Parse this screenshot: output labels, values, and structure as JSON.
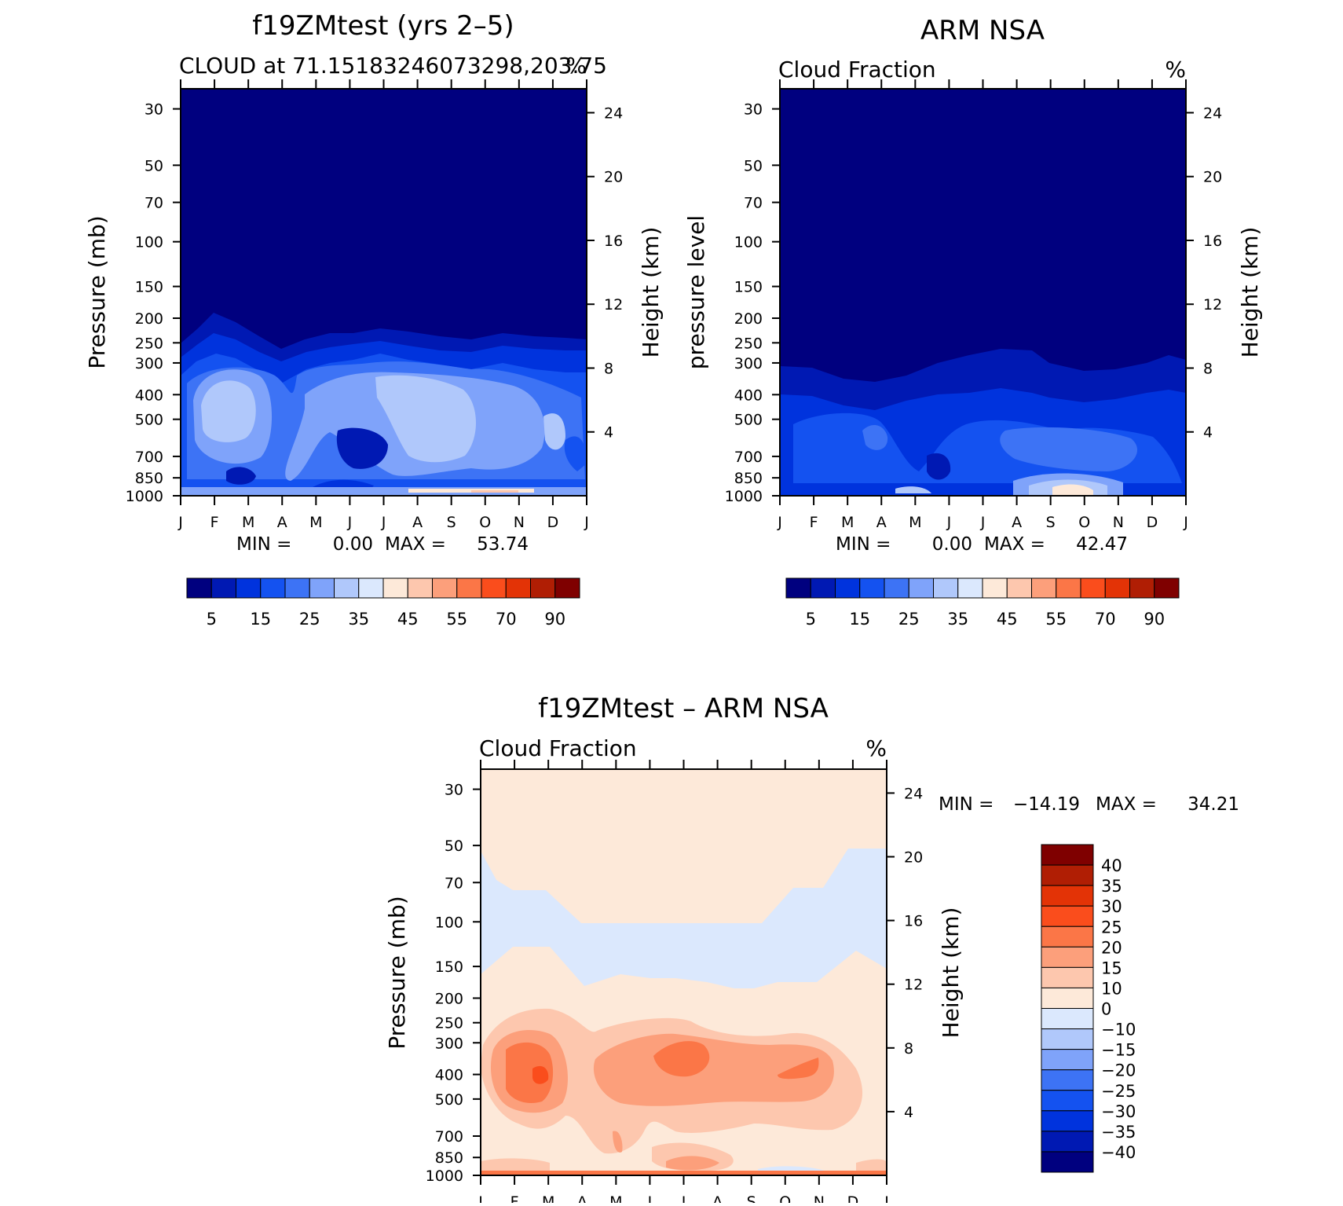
{
  "chart_data": [
    {
      "type": "contour",
      "title": "f19ZMtest (yrs 2–5)",
      "subtitle_left": "CLOUD at 71.15183246073298,203.75",
      "subtitle_right": "%",
      "ylabel_left": "Pressure (mb)",
      "ylabel_right": "Height (km)",
      "x_ticks": [
        "J",
        "F",
        "M",
        "A",
        "M",
        "J",
        "J",
        "A",
        "S",
        "O",
        "N",
        "D",
        "J"
      ],
      "pressure_ticks": [
        30,
        50,
        70,
        100,
        150,
        200,
        250,
        300,
        400,
        500,
        700,
        850,
        1000
      ],
      "height_ticks": [
        24,
        20,
        16,
        12,
        8,
        4
      ],
      "stats": {
        "min_label": "MIN =",
        "min": "0.00",
        "max_label": "MAX =",
        "max": "53.74"
      },
      "colorbar": {
        "orientation": "horizontal",
        "labels": [
          "5",
          "15",
          "25",
          "35",
          "45",
          "55",
          "70",
          "90"
        ],
        "colors": [
          "#00007f",
          "#0019b3",
          "#0033dd",
          "#1452f0",
          "#3d73f5",
          "#7fa3fa",
          "#b0c8fb",
          "#dbe8fd",
          "#fde9d9",
          "#fdc7ae",
          "#fc9f7b",
          "#fb7647",
          "#fa4d1c",
          "#e33306",
          "#b01e04",
          "#7f0000"
        ]
      },
      "field": {
        "months": [
          "J",
          "F",
          "M",
          "A",
          "M",
          "J",
          "J",
          "A",
          "S",
          "O",
          "N",
          "D",
          "J"
        ],
        "levels_mb": [
          1000,
          850,
          700,
          500,
          400,
          300,
          250,
          200,
          150
        ],
        "cloud_top_mb": [
          250,
          200,
          235,
          280,
          245,
          240,
          228,
          238,
          250,
          262,
          248,
          242,
          250
        ],
        "mid_cloud_peak_pct": [
          28,
          37,
          36,
          18,
          30,
          22,
          38,
          36,
          32,
          33,
          30,
          28,
          26
        ]
      }
    },
    {
      "type": "contour",
      "title": "ARM NSA",
      "subtitle_left": "Cloud Fraction",
      "subtitle_right": "%",
      "ylabel_left": "pressure level",
      "ylabel_right": "Height (km)",
      "x_ticks": [
        "J",
        "F",
        "M",
        "A",
        "M",
        "J",
        "J",
        "A",
        "S",
        "O",
        "N",
        "D",
        "J"
      ],
      "pressure_ticks": [
        30,
        50,
        70,
        100,
        150,
        200,
        250,
        300,
        400,
        500,
        700,
        850,
        1000
      ],
      "height_ticks": [
        24,
        20,
        16,
        12,
        8,
        4
      ],
      "stats": {
        "min_label": "MIN =",
        "min": "0.00",
        "max_label": "MAX =",
        "max": "42.47"
      },
      "colorbar": {
        "orientation": "horizontal",
        "labels": [
          "5",
          "15",
          "25",
          "35",
          "45",
          "55",
          "70",
          "90"
        ],
        "colors": [
          "#00007f",
          "#0019b3",
          "#0033dd",
          "#1452f0",
          "#3d73f5",
          "#7fa3fa",
          "#b0c8fb",
          "#dbe8fd",
          "#fde9d9",
          "#fdc7ae",
          "#fc9f7b",
          "#fb7647",
          "#fa4d1c",
          "#e33306",
          "#b01e04",
          "#7f0000"
        ]
      },
      "field": {
        "months": [
          "J",
          "F",
          "M",
          "A",
          "M",
          "J",
          "J",
          "A",
          "S",
          "O",
          "N",
          "D",
          "J"
        ],
        "cloud_top_mb": [
          300,
          310,
          350,
          330,
          320,
          300,
          275,
          265,
          290,
          300,
          295,
          275,
          290
        ],
        "mid_cloud_peak_pct": [
          18,
          22,
          26,
          22,
          20,
          12,
          22,
          25,
          24,
          24,
          22,
          20,
          18
        ]
      }
    },
    {
      "type": "contour",
      "title": "f19ZMtest – ARM NSA",
      "subtitle_left": "Cloud Fraction",
      "subtitle_right": "%",
      "ylabel_left": "Pressure (mb)",
      "ylabel_right": "Height (km)",
      "x_ticks": [
        "J",
        "F",
        "M",
        "A",
        "M",
        "J",
        "J",
        "A",
        "S",
        "O",
        "N",
        "D",
        "J"
      ],
      "pressure_ticks": [
        30,
        50,
        70,
        100,
        150,
        200,
        250,
        300,
        400,
        500,
        700,
        850,
        1000
      ],
      "height_ticks": [
        24,
        20,
        16,
        12,
        8,
        4
      ],
      "stats": {
        "min_label": "MIN =",
        "min": "−14.19",
        "max_label": "MAX =",
        "max": "34.21"
      },
      "colorbar": {
        "orientation": "vertical",
        "labels": [
          "40",
          "35",
          "30",
          "25",
          "20",
          "15",
          "10",
          "0",
          "−10",
          "−15",
          "−20",
          "−25",
          "−30",
          "−35",
          "−40"
        ],
        "colors": [
          "#7f0000",
          "#b01e04",
          "#e33306",
          "#fa4d1c",
          "#fb7647",
          "#fc9f7b",
          "#fdc7ae",
          "#fde9d9",
          "#dbe8fd",
          "#b0c8fb",
          "#7fa3fa",
          "#3d73f5",
          "#1452f0",
          "#0033dd",
          "#0019b3",
          "#00007f"
        ]
      },
      "field": {
        "months": [
          "J",
          "F",
          "M",
          "A",
          "M",
          "J",
          "J",
          "A",
          "S",
          "O",
          "N",
          "D",
          "J"
        ],
        "upper_negative_band_mb": [
          [
            50,
            150
          ],
          [
            70,
            150
          ],
          [
            70,
            150
          ],
          [
            100,
            180
          ],
          [
            100,
            160
          ],
          [
            100,
            150
          ],
          [
            100,
            150
          ],
          [
            100,
            150
          ],
          [
            100,
            175
          ],
          [
            100,
            170
          ],
          [
            70,
            150
          ],
          [
            50,
            150
          ],
          [
            50,
            150
          ]
        ],
        "mid_positive_peak_pct": [
          10,
          22,
          30,
          12,
          18,
          22,
          26,
          20,
          20,
          22,
          26,
          12,
          10
        ]
      }
    }
  ]
}
